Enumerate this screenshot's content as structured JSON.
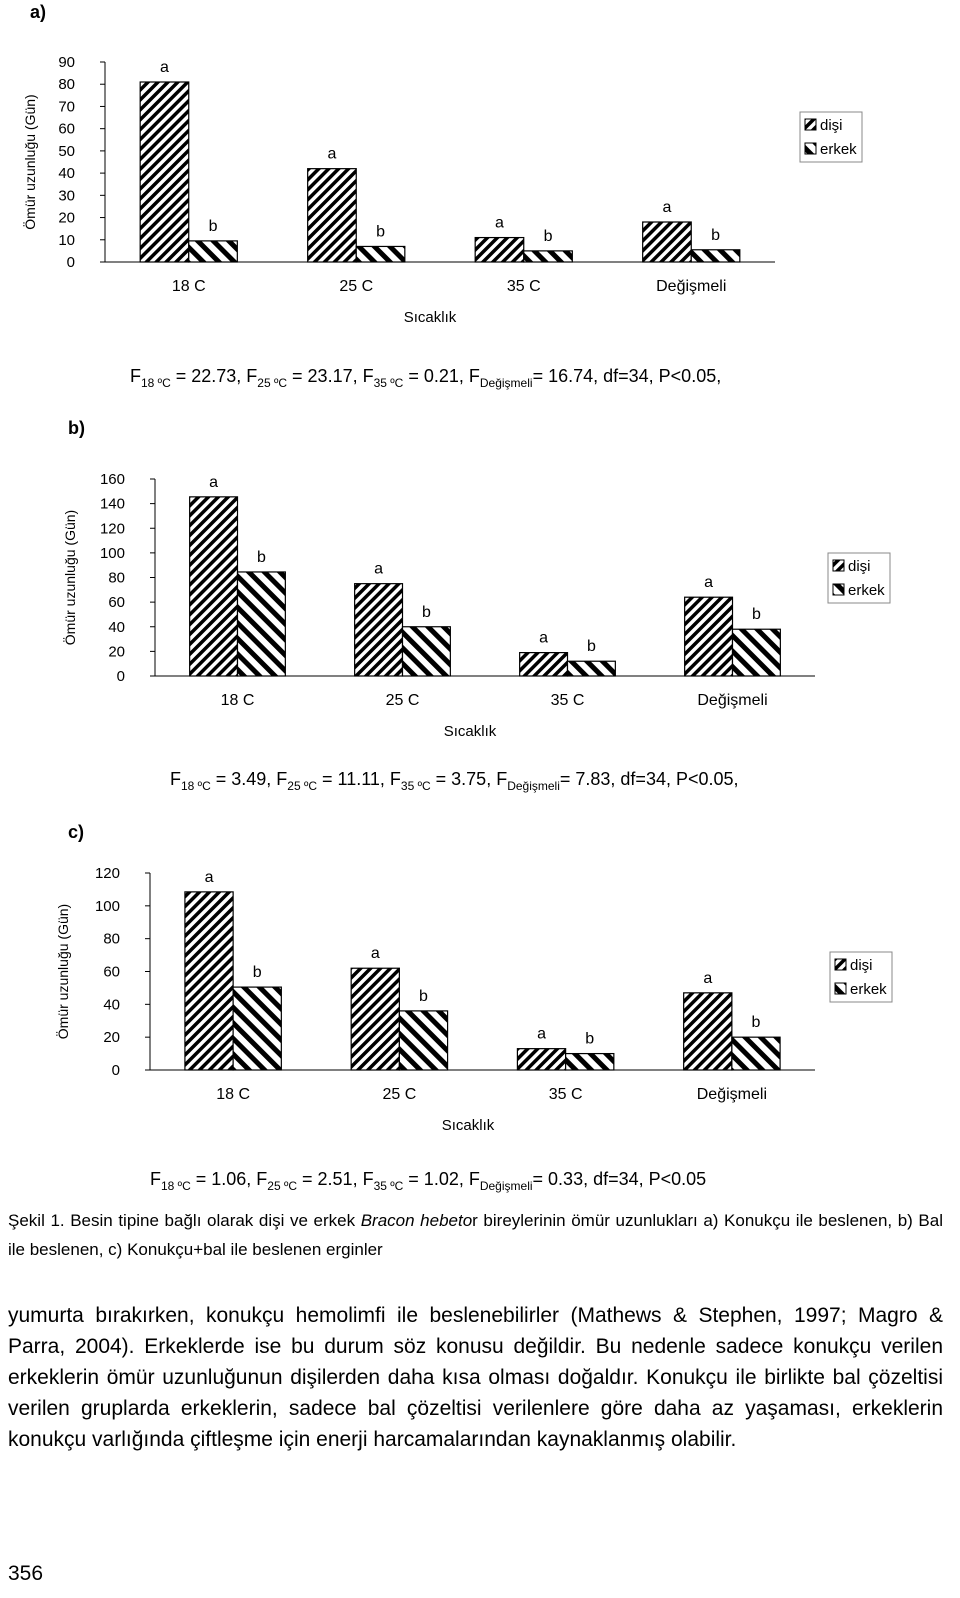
{
  "chart_data": [
    {
      "type": "bar",
      "y_label": "Ömür uzunluğu (Gün)",
      "x_label": "Sıcaklık",
      "categories": [
        "18 C",
        "25 C",
        "35 C",
        "Değişmeli"
      ],
      "series": [
        {
          "name": "dişi",
          "color": "#000000",
          "values": [
            81,
            42,
            11,
            18
          ],
          "letters": [
            "a",
            "a",
            "a",
            "a"
          ]
        },
        {
          "name": "erkek",
          "color": "#000000",
          "values": [
            9.5,
            7,
            5,
            5.5
          ],
          "letters": [
            "b",
            "b",
            "b",
            "b"
          ]
        }
      ],
      "ylim": [
        0,
        90
      ],
      "yticks": [
        0,
        10,
        20,
        30,
        40,
        50,
        60,
        70,
        80,
        90
      ],
      "legend": "right"
    },
    {
      "type": "bar",
      "y_label": "Ömür uzunluğu (Gün)",
      "x_label": "Sıcaklık",
      "categories": [
        "18 C",
        "25 C",
        "35 C",
        "Değişmeli"
      ],
      "series": [
        {
          "name": "dişi",
          "color": "#000000",
          "values": [
            145.5,
            75,
            19,
            64
          ],
          "letters": [
            "a",
            "a",
            "a",
            "a"
          ]
        },
        {
          "name": "erkek",
          "color": "#000000",
          "values": [
            84.5,
            40,
            12,
            38
          ],
          "letters": [
            "b",
            "b",
            "b",
            "b"
          ]
        }
      ],
      "ylim": [
        0,
        160
      ],
      "yticks": [
        0,
        20,
        40,
        60,
        80,
        100,
        120,
        140,
        160
      ],
      "legend": "right"
    },
    {
      "type": "bar",
      "y_label": "Ömür uzunluğu (Gün)",
      "x_label": "Sıcaklık",
      "categories": [
        "18 C",
        "25 C",
        "35 C",
        "Değişmeli"
      ],
      "series": [
        {
          "name": "dişi",
          "color": "#000000",
          "values": [
            108.5,
            62,
            13,
            47
          ],
          "letters": [
            "a",
            "a",
            "a",
            "a"
          ]
        },
        {
          "name": "erkek",
          "color": "#000000",
          "values": [
            50.5,
            36,
            10,
            20
          ],
          "letters": [
            "b",
            "b",
            "b",
            "b"
          ]
        }
      ],
      "ylim": [
        0,
        120
      ],
      "yticks": [
        0,
        20,
        40,
        60,
        80,
        100,
        120
      ],
      "legend": "right"
    }
  ],
  "document": {
    "panel_labels": [
      "a)",
      "b)",
      "c)"
    ],
    "stats": [
      [
        "F",
        "18 ºC",
        " = 22.73, F",
        "25 ºC",
        " = 23.17, F",
        "35 ºC",
        " = 0.21, F",
        "Değişmeli",
        "= 16.74, df=34, P<0.05,"
      ],
      [
        "F",
        "18 ºC",
        " = 3.49, F",
        "25 ºC",
        " = 11.11, F",
        "35 ºC",
        " = 3.75, F",
        "Değişmeli",
        "= 7.83, df=34, P<0.05,"
      ],
      [
        "F",
        "18 ºC",
        " = 1.06, F",
        "25 ºC",
        " = 2.51, F",
        "35 ºC",
        " = 1.02, F",
        "Değişmeli",
        "= 0.33, df=34, P<0.05"
      ]
    ],
    "caption": [
      "Şekil 1. Besin tipine bağlı olarak dişi ve erkek ",
      "Bracon hebeto",
      "r bireylerinin ömür uzunlukları a) Konukçu ile beslenen, b) Bal ile beslenen, c) Konukçu+bal ile beslenen erginler"
    ],
    "paragraph": "yumurta bırakırken, konukçu hemolimfi ile beslenebilirler (Mathews & Stephen, 1997; Magro & Parra, 2004). Erkeklerde ise bu durum söz konusu değildir. Bu nedenle sadece konukçu verilen erkeklerin ömür uzunluğunun dişilerden daha kısa olması doğaldır. Konukçu ile birlikte bal çözeltisi verilen gruplarda erkeklerin, sadece bal çözeltisi verilenlere göre daha az yaşaması, erkeklerin konukçu varlığında çiftleşme için enerji harcamalarından kaynaklanmış olabilir.",
    "page_number": "356"
  }
}
